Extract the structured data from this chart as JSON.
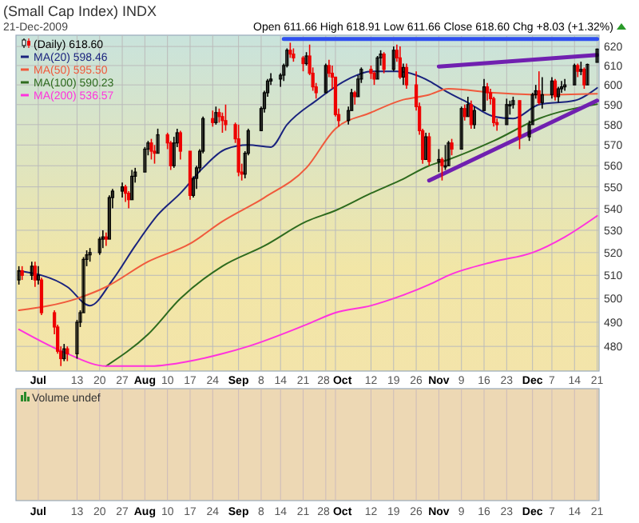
{
  "chart_data": {
    "type": "candlestick",
    "title": "(Small Cap Index) INDX",
    "subtitle": "21-Dec-2009",
    "annotations": [
      "Open 611.66 High 618.91 Low 611.66 Close 618.60 Chg +8.03 (+1.32%)",
      "Volume undef"
    ],
    "x": [
      "2009-06-25",
      "2009-06-26",
      "2009-06-29",
      "2009-06-30",
      "2009-07-01",
      "2009-07-02",
      "2009-07-06",
      "2009-07-07",
      "2009-07-08",
      "2009-07-09",
      "2009-07-10",
      "2009-07-13",
      "2009-07-14",
      "2009-07-15",
      "2009-07-16",
      "2009-07-17",
      "2009-07-20",
      "2009-07-21",
      "2009-07-22",
      "2009-07-23",
      "2009-07-24",
      "2009-07-27",
      "2009-07-28",
      "2009-07-29",
      "2009-07-30",
      "2009-07-31",
      "2009-08-03",
      "2009-08-04",
      "2009-08-05",
      "2009-08-06",
      "2009-08-07",
      "2009-08-10",
      "2009-08-11",
      "2009-08-12",
      "2009-08-13",
      "2009-08-14",
      "2009-08-17",
      "2009-08-18",
      "2009-08-19",
      "2009-08-20",
      "2009-08-21",
      "2009-08-24",
      "2009-08-25",
      "2009-08-26",
      "2009-08-27",
      "2009-08-28",
      "2009-08-31",
      "2009-09-01",
      "2009-09-02",
      "2009-09-03",
      "2009-09-04",
      "2009-09-08",
      "2009-09-09",
      "2009-09-10",
      "2009-09-11",
      "2009-09-14",
      "2009-09-15",
      "2009-09-16",
      "2009-09-17",
      "2009-09-18",
      "2009-09-21",
      "2009-09-22",
      "2009-09-23",
      "2009-09-24",
      "2009-09-25",
      "2009-09-28",
      "2009-09-29",
      "2009-09-30",
      "2009-10-01",
      "2009-10-02",
      "2009-10-05",
      "2009-10-06",
      "2009-10-07",
      "2009-10-08",
      "2009-10-09",
      "2009-10-12",
      "2009-10-13",
      "2009-10-14",
      "2009-10-15",
      "2009-10-16",
      "2009-10-19",
      "2009-10-20",
      "2009-10-21",
      "2009-10-22",
      "2009-10-23",
      "2009-10-26",
      "2009-10-27",
      "2009-10-28",
      "2009-10-29",
      "2009-10-30",
      "2009-11-02",
      "2009-11-03",
      "2009-11-04",
      "2009-11-05",
      "2009-11-06",
      "2009-11-09",
      "2009-11-10",
      "2009-11-11",
      "2009-11-12",
      "2009-11-13",
      "2009-11-16",
      "2009-11-17",
      "2009-11-18",
      "2009-11-19",
      "2009-11-20",
      "2009-11-23",
      "2009-11-24",
      "2009-11-25",
      "2009-11-27",
      "2009-11-30",
      "2009-12-01",
      "2009-12-02",
      "2009-12-03",
      "2009-12-04",
      "2009-12-07",
      "2009-12-08",
      "2009-12-09",
      "2009-12-10",
      "2009-12-11",
      "2009-12-14",
      "2009-12-15",
      "2009-12-16",
      "2009-12-17",
      "2009-12-18",
      "2009-12-21"
    ],
    "series": [
      {
        "name": "(Daily) 618.60",
        "colors": [
          "#000000",
          "#ee0000",
          "#000000",
          "#ee0000",
          "#000000",
          "#ee0000",
          "#ee0000",
          "#ee0000",
          "#ee0000",
          "#000000",
          "#ee0000",
          "#000000",
          "#000000",
          "#000000",
          "#000000",
          "#000000",
          "#000000",
          "#000000",
          "#ee0000",
          "#000000",
          "#000000",
          "#000000",
          "#ee0000",
          "#ee0000",
          "#000000",
          "#000000",
          "#000000",
          "#000000",
          "#ee0000",
          "#ee0000",
          "#000000",
          "#ee0000",
          "#ee0000",
          "#000000",
          "#000000",
          "#ee0000",
          "#ee0000",
          "#000000",
          "#000000",
          "#000000",
          "#000000",
          "#ee0000",
          "#000000",
          "#ee0000",
          "#ee0000",
          "#ee0000",
          "#ee0000",
          "#ee0000",
          "#ee0000",
          "#000000",
          "#000000",
          "#000000",
          "#000000",
          "#000000",
          "#000000",
          "#000000",
          "#000000",
          "#000000",
          "#ee0000",
          "#ee0000",
          "#ee0000",
          "#000000",
          "#ee0000",
          "#ee0000",
          "#ee0000",
          "#000000",
          "#ee0000",
          "#ee0000",
          "#ee0000",
          "#ee0000",
          "#000000",
          "#000000",
          "#ee0000",
          "#000000",
          "#000000",
          "#ee0000",
          "#ee0000",
          "#000000",
          "#000000",
          "#ee0000",
          "#000000",
          "#ee0000",
          "#ee0000",
          "#000000",
          "#ee0000",
          "#ee0000",
          "#ee0000",
          "#ee0000",
          "#000000",
          "#ee0000",
          "#000000",
          "#ee0000",
          "#000000",
          "#000000",
          "#ee0000",
          "#000000",
          "#ee0000",
          "#000000",
          "#ee0000",
          "#000000",
          "#000000",
          "#ee0000",
          "#ee0000",
          "#ee0000",
          "#ee0000",
          "#000000",
          "#000000",
          "#000000",
          "#ee0000",
          "#000000",
          "#000000",
          "#000000",
          "#ee0000",
          "#000000",
          "#000000",
          "#ee0000",
          "#000000",
          "#000000",
          "#000000",
          "#000000",
          "#ee0000",
          "#000000",
          "#ee0000",
          "#000000",
          "#000000"
        ],
        "ohlc": [
          [
            508,
            514,
            506,
            512
          ],
          [
            512,
            514,
            508,
            510
          ],
          [
            510,
            516,
            508,
            514
          ],
          [
            514,
            516,
            505,
            508
          ],
          [
            508,
            514,
            506,
            510
          ],
          [
            508,
            509,
            493,
            494
          ],
          [
            494,
            495,
            485,
            488
          ],
          [
            488,
            489,
            477,
            478
          ],
          [
            478,
            480,
            472,
            475
          ],
          [
            475,
            481,
            474,
            479
          ],
          [
            479,
            480,
            474,
            477
          ],
          [
            477,
            491,
            475,
            490
          ],
          [
            490,
            495,
            488,
            494
          ],
          [
            494,
            518,
            494,
            517
          ],
          [
            517,
            521,
            514,
            519
          ],
          [
            519,
            522,
            516,
            520
          ],
          [
            520,
            527,
            519,
            526
          ],
          [
            526,
            530,
            522,
            527
          ],
          [
            527,
            529,
            523,
            526
          ],
          [
            526,
            546,
            526,
            545
          ],
          [
            545,
            549,
            540,
            548
          ],
          [
            548,
            552,
            545,
            550
          ],
          [
            550,
            551,
            543,
            547
          ],
          [
            547,
            548,
            540,
            544
          ],
          [
            544,
            558,
            544,
            555
          ],
          [
            555,
            559,
            552,
            557
          ],
          [
            557,
            569,
            557,
            568
          ],
          [
            568,
            572,
            565,
            571
          ],
          [
            571,
            573,
            563,
            567
          ],
          [
            567,
            570,
            561,
            566
          ],
          [
            566,
            578,
            566,
            575
          ],
          [
            575,
            576,
            568,
            571
          ],
          [
            571,
            572,
            558,
            560
          ],
          [
            560,
            574,
            559,
            571
          ],
          [
            571,
            578,
            569,
            576
          ],
          [
            576,
            577,
            563,
            567
          ],
          [
            567,
            567,
            544,
            546
          ],
          [
            546,
            555,
            545,
            554
          ],
          [
            554,
            560,
            549,
            559
          ],
          [
            559,
            568,
            557,
            567
          ],
          [
            567,
            584,
            566,
            583
          ],
          [
            583,
            587,
            579,
            581
          ],
          [
            581,
            589,
            580,
            586
          ],
          [
            586,
            588,
            581,
            584
          ],
          [
            584,
            586,
            576,
            582
          ],
          [
            582,
            590,
            577,
            580
          ],
          [
            580,
            581,
            571,
            573
          ],
          [
            573,
            580,
            555,
            557
          ],
          [
            557,
            561,
            553,
            556
          ],
          [
            556,
            567,
            554,
            566
          ],
          [
            566,
            578,
            565,
            577
          ],
          [
            577,
            589,
            577,
            588
          ],
          [
            588,
            597,
            586,
            596
          ],
          [
            596,
            603,
            594,
            602
          ],
          [
            602,
            606,
            600,
            603
          ],
          [
            603,
            606,
            599,
            605
          ],
          [
            605,
            611,
            602,
            610
          ],
          [
            610,
            619,
            609,
            618
          ],
          [
            618,
            622,
            614,
            616
          ],
          [
            616,
            619,
            612,
            614
          ],
          [
            614,
            615,
            607,
            611
          ],
          [
            611,
            617,
            610,
            615
          ],
          [
            615,
            621,
            605,
            606
          ],
          [
            606,
            609,
            597,
            599
          ],
          [
            599,
            601,
            593,
            596
          ],
          [
            596,
            611,
            596,
            610
          ],
          [
            610,
            613,
            604,
            606
          ],
          [
            606,
            610,
            598,
            604
          ],
          [
            604,
            604,
            584,
            585
          ],
          [
            585,
            588,
            579,
            582
          ],
          [
            582,
            589,
            580,
            587
          ],
          [
            587,
            598,
            587,
            596
          ],
          [
            596,
            597,
            590,
            594
          ],
          [
            594,
            605,
            594,
            603
          ],
          [
            603,
            609,
            601,
            608
          ],
          [
            608,
            610,
            603,
            606
          ],
          [
            606,
            607,
            600,
            603
          ],
          [
            603,
            615,
            603,
            614
          ],
          [
            614,
            618,
            610,
            616
          ],
          [
            616,
            617,
            606,
            608
          ],
          [
            608,
            620,
            607,
            618
          ],
          [
            618,
            621,
            612,
            614
          ],
          [
            614,
            620,
            603,
            604
          ],
          [
            604,
            611,
            600,
            609
          ],
          [
            609,
            611,
            598,
            600
          ],
          [
            600,
            607,
            587,
            589
          ],
          [
            589,
            591,
            575,
            577
          ],
          [
            577,
            578,
            561,
            563
          ],
          [
            563,
            576,
            563,
            574
          ],
          [
            574,
            576,
            560,
            562
          ],
          [
            562,
            568,
            557,
            563
          ],
          [
            563,
            564,
            553,
            560
          ],
          [
            560,
            570,
            558,
            560
          ],
          [
            560,
            572,
            560,
            571
          ],
          [
            571,
            573,
            565,
            568
          ],
          [
            568,
            589,
            568,
            588
          ],
          [
            588,
            590,
            582,
            584
          ],
          [
            584,
            594,
            584,
            590
          ],
          [
            590,
            592,
            578,
            580
          ],
          [
            580,
            589,
            578,
            587
          ],
          [
            587,
            603,
            587,
            599
          ],
          [
            599,
            601,
            592,
            596
          ],
          [
            596,
            598,
            590,
            593
          ],
          [
            593,
            594,
            579,
            581
          ],
          [
            581,
            583,
            577,
            580
          ],
          [
            580,
            593,
            580,
            590
          ],
          [
            590,
            592,
            585,
            590
          ],
          [
            590,
            594,
            588,
            592
          ],
          [
            592,
            592,
            568,
            574
          ],
          [
            574,
            582,
            572,
            580
          ],
          [
            580,
            596,
            580,
            595
          ],
          [
            595,
            600,
            593,
            597
          ],
          [
            597,
            607,
            590,
            591
          ],
          [
            591,
            604,
            588,
            595
          ],
          [
            595,
            604,
            593,
            602
          ],
          [
            602,
            603,
            592,
            594
          ],
          [
            594,
            599,
            591,
            598
          ],
          [
            598,
            602,
            596,
            599
          ],
          [
            599,
            603,
            597,
            600
          ],
          [
            600,
            611,
            600,
            610
          ],
          [
            610,
            611,
            604,
            607
          ],
          [
            607,
            612,
            605,
            608
          ],
          [
            608,
            609,
            598,
            600
          ],
          [
            600,
            611,
            600,
            610.57
          ],
          [
            611.66,
            618.91,
            611.66,
            618.6
          ]
        ]
      },
      {
        "type": "line",
        "name": "MA(20) 598.46",
        "color": "#1a237e",
        "x": [
          "2009-06-25",
          "2009-07-10",
          "2009-07-17",
          "2009-07-24",
          "2009-07-31",
          "2009-08-07",
          "2009-08-14",
          "2009-08-21",
          "2009-08-28",
          "2009-09-04",
          "2009-09-11",
          "2009-09-16",
          "2009-09-25",
          "2009-10-05",
          "2009-10-12",
          "2009-10-20",
          "2009-10-26",
          "2009-10-30",
          "2009-11-05",
          "2009-11-11",
          "2009-11-19",
          "2009-11-25",
          "2009-12-03",
          "2009-12-14",
          "2009-12-21"
        ],
        "values": [
          512,
          505,
          497,
          508,
          523,
          537,
          547,
          559,
          568,
          570,
          569,
          580,
          592,
          603,
          607,
          607,
          605,
          602,
          596,
          591,
          584,
          583,
          590,
          592,
          598.46
        ]
      },
      {
        "type": "line",
        "name": "MA(50) 595.50",
        "color": "#f05a3c",
        "x": [
          "2009-06-25",
          "2009-07-13",
          "2009-07-22",
          "2009-08-04",
          "2009-08-17",
          "2009-08-27",
          "2009-09-09",
          "2009-09-22",
          "2009-10-01",
          "2009-10-12",
          "2009-10-21",
          "2009-10-30",
          "2009-11-05",
          "2009-11-19",
          "2009-12-03",
          "2009-12-21"
        ],
        "values": [
          495,
          500,
          505,
          516,
          524,
          534,
          545,
          559,
          578,
          586,
          592,
          595,
          598,
          596,
          595,
          595.5
        ]
      },
      {
        "type": "line",
        "name": "MA(100) 590.23",
        "color": "#2e6b1e",
        "x": [
          "2009-07-22",
          "2009-08-04",
          "2009-08-14",
          "2009-08-27",
          "2009-09-09",
          "2009-09-22",
          "2009-10-01",
          "2009-10-12",
          "2009-10-21",
          "2009-10-30",
          "2009-11-05",
          "2009-11-19",
          "2009-12-03",
          "2009-12-21"
        ],
        "values": [
          472,
          485,
          500,
          514,
          523,
          534,
          539,
          547,
          553,
          560,
          563,
          572,
          583,
          590.23
        ]
      },
      {
        "type": "line",
        "name": "MA(200) 536.57",
        "color": "#ff33dd",
        "x": [
          "2009-06-25",
          "2009-07-10",
          "2009-07-22",
          "2009-08-05",
          "2009-08-17",
          "2009-08-27",
          "2009-09-04",
          "2009-09-22",
          "2009-10-01",
          "2009-10-12",
          "2009-10-21",
          "2009-10-30",
          "2009-11-05",
          "2009-11-19",
          "2009-12-01",
          "2009-12-11",
          "2009-12-21"
        ],
        "values": [
          487,
          477,
          472,
          472,
          474,
          477,
          480,
          489,
          494,
          497,
          501,
          506,
          510,
          516,
          520,
          527,
          536.57
        ]
      },
      {
        "type": "line",
        "color": "#7020b0",
        "x": [
          "2009-11-02",
          "2009-12-21"
        ],
        "values": [
          609.5,
          615.5
        ]
      },
      {
        "type": "line",
        "color": "#7020b0",
        "x": [
          "2009-10-30",
          "2009-12-21"
        ],
        "values": [
          553,
          592
        ]
      },
      {
        "type": "line",
        "color": "#3050f0",
        "x": [
          "2009-09-15",
          "2009-12-21"
        ],
        "values": [
          624,
          624
        ]
      }
    ],
    "xlim": [
      "2009-06-25",
      "2009-12-21"
    ],
    "xticks": [
      {
        "value": "2009-07-01",
        "label": "Jul"
      },
      {
        "value": "2009-07-13",
        "label": "13"
      },
      {
        "value": "2009-07-20",
        "label": "20"
      },
      {
        "value": "2009-07-27",
        "label": "27"
      },
      {
        "value": "2009-08-03",
        "label": "Aug"
      },
      {
        "value": "2009-08-10",
        "label": "10"
      },
      {
        "value": "2009-08-17",
        "label": "17"
      },
      {
        "value": "2009-08-24",
        "label": "24"
      },
      {
        "value": "2009-09-01",
        "label": "Sep"
      },
      {
        "value": "2009-09-08",
        "label": "8"
      },
      {
        "value": "2009-09-14",
        "label": "14"
      },
      {
        "value": "2009-09-21",
        "label": "21"
      },
      {
        "value": "2009-09-28",
        "label": "28"
      },
      {
        "value": "2009-10-01",
        "label": "Oct"
      },
      {
        "value": "2009-10-12",
        "label": "12"
      },
      {
        "value": "2009-10-19",
        "label": "19"
      },
      {
        "value": "2009-10-26",
        "label": "26"
      },
      {
        "value": "2009-11-02",
        "label": "Nov"
      },
      {
        "value": "2009-11-09",
        "label": "9"
      },
      {
        "value": "2009-11-16",
        "label": "16"
      },
      {
        "value": "2009-11-23",
        "label": "23"
      },
      {
        "value": "2009-12-01",
        "label": "Dec"
      },
      {
        "value": "2009-12-07",
        "label": "7"
      },
      {
        "value": "2009-12-14",
        "label": "14"
      },
      {
        "value": "2009-12-21",
        "label": "21"
      }
    ],
    "ylim": [
      470,
      626
    ],
    "yticks": [
      480,
      490,
      500,
      510,
      520,
      530,
      540,
      550,
      560,
      570,
      580,
      590,
      600,
      610,
      620
    ],
    "log": true,
    "grid": true,
    "legend": "top left"
  }
}
